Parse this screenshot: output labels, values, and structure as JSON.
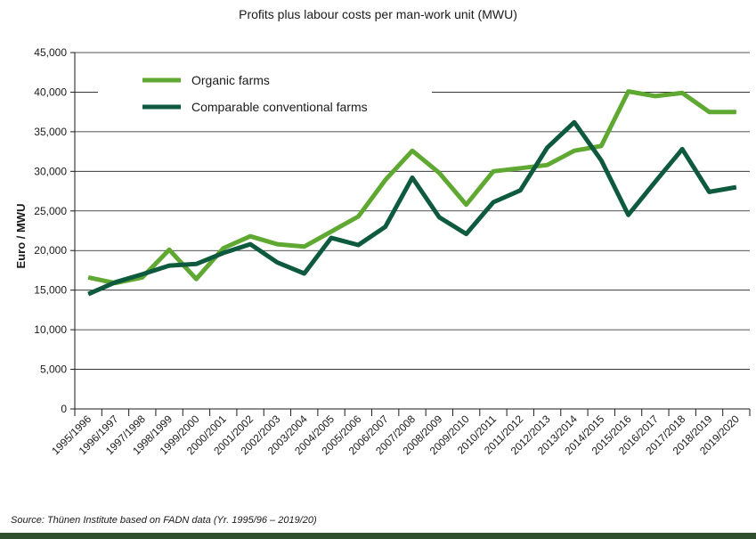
{
  "chart_data": {
    "type": "line",
    "title": "Profits plus labour costs per man-work unit (MWU)",
    "ylabel": "Euro / MWU",
    "xlabel": "",
    "ylim": [
      0,
      45000
    ],
    "yticks": [
      0,
      5000,
      10000,
      15000,
      20000,
      25000,
      30000,
      35000,
      40000,
      45000
    ],
    "ytick_labels": [
      "0",
      "5,000",
      "10,000",
      "15,000",
      "20,000",
      "25,000",
      "30,000",
      "35,000",
      "40,000",
      "45,000"
    ],
    "grid": "horizontal",
    "legend_position": "top-left",
    "categories": [
      "1995/1996",
      "1996/1997",
      "1997/1998",
      "1998/1999",
      "1999/2000",
      "2000/2001",
      "2001/2002",
      "2002/2003",
      "2003/2004",
      "2004/2005",
      "2005/2006",
      "2006/2007",
      "2007/2008",
      "2008/2009",
      "2009/2010",
      "2010/2011",
      "2011/2012",
      "2012/2013",
      "2013/2014",
      "2014/2015",
      "2015/2016",
      "2016/2017",
      "2017/2018",
      "2018/2019",
      "2019/2020"
    ],
    "series": [
      {
        "name": "Organic farms",
        "color": "#5fa831",
        "values": [
          16600,
          15900,
          16600,
          20100,
          16400,
          20300,
          21800,
          20800,
          20500,
          22400,
          24300,
          28900,
          32600,
          29800,
          25800,
          30000,
          30400,
          30800,
          32600,
          33200,
          40100,
          39500,
          39900,
          37500,
          37500
        ]
      },
      {
        "name": "Comparable conventional farms",
        "color": "#0e5a3f",
        "values": [
          14500,
          16000,
          17000,
          18100,
          18300,
          19700,
          20800,
          18500,
          17100,
          21600,
          20700,
          23000,
          29200,
          24200,
          22100,
          26100,
          27600,
          33000,
          36200,
          31400,
          24500,
          28700,
          32800,
          27400,
          28000
        ]
      }
    ]
  },
  "source": "Source: Thünen Institute based on FADN data (Yr. 1995/96 – 2019/20)"
}
